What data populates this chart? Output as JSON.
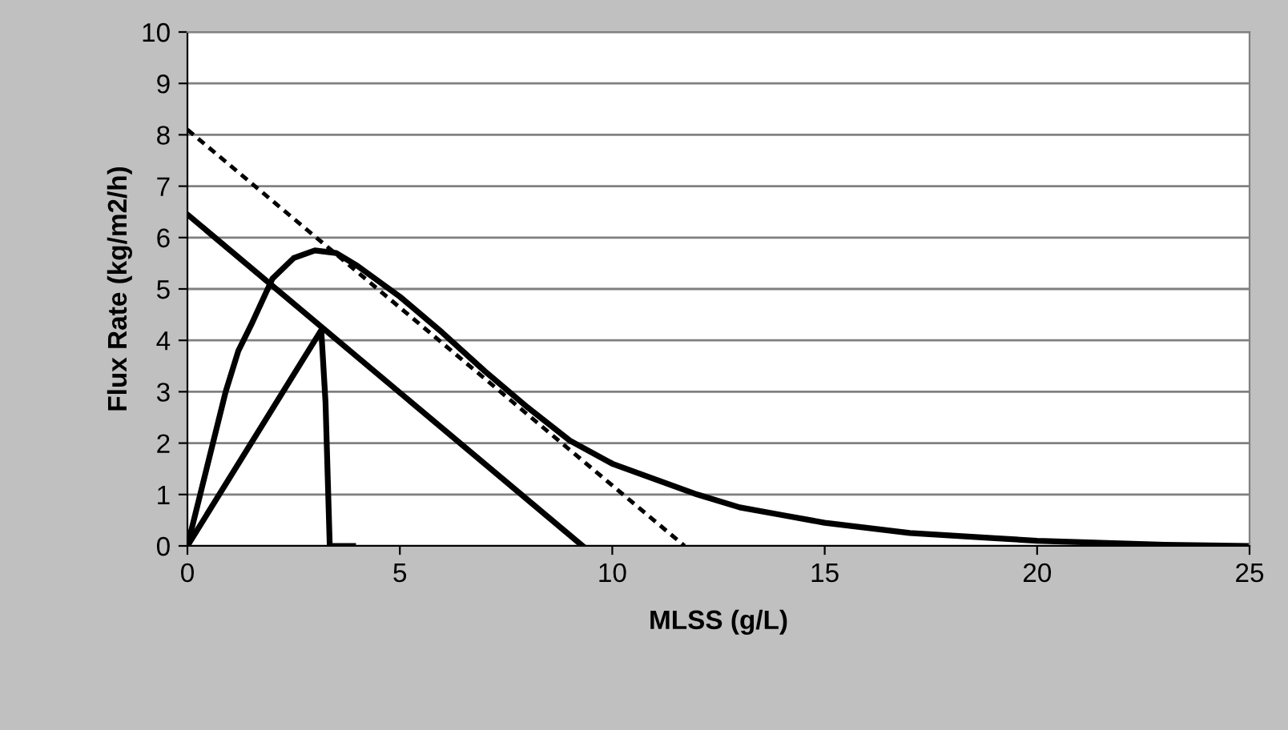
{
  "chart_data": {
    "type": "line",
    "xlabel": "MLSS (g/L)",
    "ylabel": "Flux Rate (kg/m2/h)",
    "xlim": [
      0,
      25
    ],
    "xticks": [
      0,
      5,
      10,
      15,
      20,
      25
    ],
    "ylim": [
      0,
      10
    ],
    "yticks": [
      0,
      1,
      2,
      3,
      4,
      5,
      6,
      7,
      8,
      9,
      10
    ],
    "grid": "y",
    "marker": "none",
    "series": [
      {
        "color": "#000000",
        "line_style": "solid",
        "x": [
          0,
          0.3,
          0.6,
          0.9,
          1.2,
          1.5,
          2,
          2.5,
          3,
          3.5,
          4,
          5,
          6,
          7,
          8,
          9,
          10,
          11,
          12,
          13,
          14,
          15,
          17,
          19,
          20,
          23,
          25
        ],
        "values": [
          0,
          1,
          2,
          3,
          3.8,
          4.3,
          5.2,
          5.6,
          5.75,
          5.7,
          5.45,
          4.85,
          4.15,
          3.4,
          2.7,
          2.05,
          1.6,
          1.3,
          1.0,
          0.75,
          0.6,
          0.45,
          0.25,
          0.15,
          0.1,
          0.02,
          0
        ]
      },
      {
        "color": "#000000",
        "line_style": "dashed",
        "x": [
          0,
          11.7
        ],
        "values": [
          8.1,
          0
        ]
      },
      {
        "color": "#000000",
        "line_style": "solid",
        "x": [
          0,
          9.3
        ],
        "values": [
          6.45,
          0
        ]
      },
      {
        "color": "#000000",
        "line_style": "solid",
        "x": [
          0,
          3.15,
          3.25,
          3.35,
          3.9
        ],
        "values": [
          0,
          4.2,
          2.8,
          0,
          0
        ]
      }
    ]
  }
}
